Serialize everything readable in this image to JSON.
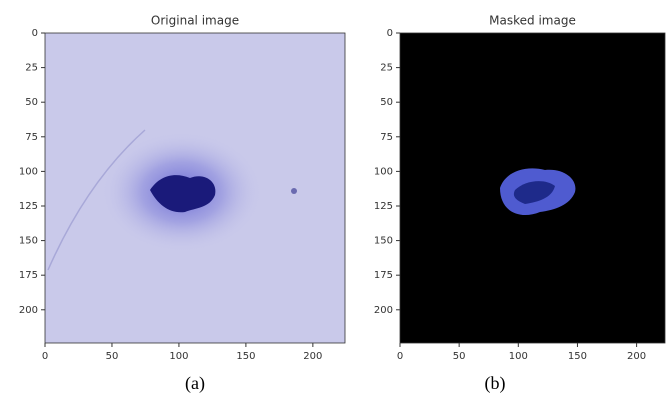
{
  "chart_data": [
    {
      "type": "image",
      "title": "Original image",
      "xlim": [
        0,
        224
      ],
      "ylim": [
        224,
        0
      ],
      "xticks": [
        0,
        50,
        100,
        150,
        200
      ],
      "yticks": [
        0,
        25,
        50,
        75,
        100,
        125,
        150,
        175,
        200
      ]
    },
    {
      "type": "image",
      "title": "Masked image",
      "xlim": [
        0,
        224
      ],
      "ylim": [
        224,
        0
      ],
      "xticks": [
        0,
        50,
        100,
        150,
        200
      ],
      "yticks": [
        0,
        25,
        50,
        75,
        100,
        125,
        150,
        175,
        200
      ]
    }
  ],
  "captions": [
    "(a)",
    "(b)"
  ]
}
